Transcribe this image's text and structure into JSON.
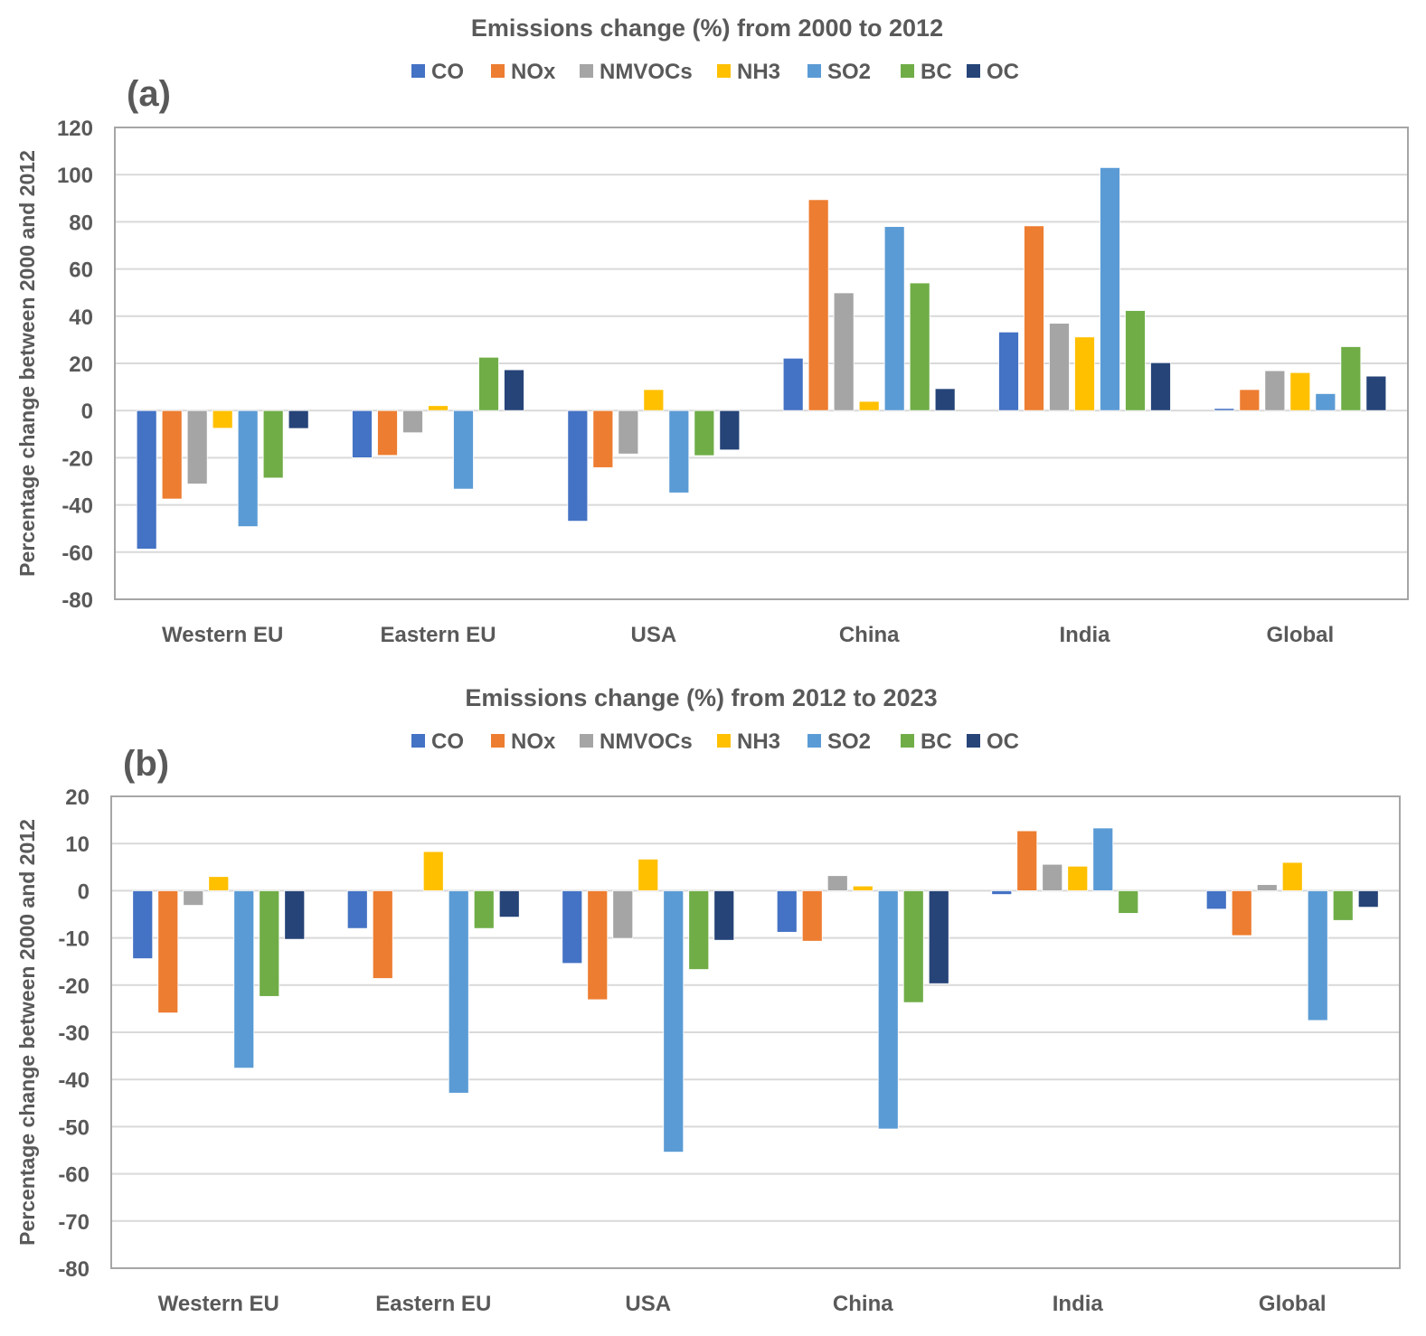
{
  "chart_data": [
    {
      "type": "bar",
      "panel_label": "(a)",
      "title": "Emissions change (%) from 2000 to 2012",
      "xlabel": "",
      "ylabel": "Percentage change between 2000 and 2012",
      "ylim": [
        -80,
        120
      ],
      "yticks": [
        120,
        100,
        80,
        60,
        40,
        20,
        0,
        -20,
        -40,
        -60,
        -80
      ],
      "grid": true,
      "legend_position": "top-center",
      "categories": [
        "Western EU",
        "Eastern EU",
        "USA",
        "China",
        "India",
        "Global"
      ],
      "series": [
        {
          "name": "CO",
          "color": "#4472c4",
          "values": [
            -58.7,
            -20.0,
            -46.9,
            22.2,
            33.3,
            0.9
          ]
        },
        {
          "name": "NOx",
          "color": "#ed7d31",
          "values": [
            -37.5,
            -19.0,
            -24.2,
            89.4,
            78.3,
            8.9
          ]
        },
        {
          "name": "NMVOCs",
          "color": "#a5a5a5",
          "values": [
            -31.1,
            -9.4,
            -18.4,
            49.9,
            37.0,
            16.9
          ]
        },
        {
          "name": "NH3",
          "color": "#ffc000",
          "values": [
            -7.5,
            2.1,
            8.9,
            3.9,
            31.2,
            16.1
          ]
        },
        {
          "name": "SO2",
          "color": "#5b9bd5",
          "values": [
            -49.2,
            -33.3,
            -34.9,
            78.0,
            103.0,
            7.2
          ]
        },
        {
          "name": "BC",
          "color": "#70ad47",
          "values": [
            -28.6,
            22.6,
            -19.1,
            54.1,
            42.4,
            27.1
          ]
        },
        {
          "name": "OC",
          "color": "#264478",
          "values": [
            -7.6,
            17.3,
            -16.7,
            9.3,
            20.3,
            14.6
          ]
        }
      ]
    },
    {
      "type": "bar",
      "panel_label": "(b)",
      "title": "Emissions change (%) from 2012 to 2023",
      "xlabel": "",
      "ylabel": "Percentage change between 2000 and 2012",
      "ylim": [
        -80,
        20
      ],
      "yticks": [
        20,
        10,
        0,
        -10,
        -20,
        -30,
        -40,
        -50,
        -60,
        -70,
        -80
      ],
      "grid": true,
      "legend_position": "top-center",
      "categories": [
        "Western EU",
        "Eastern EU",
        "USA",
        "China",
        "India",
        "Global"
      ],
      "series": [
        {
          "name": "CO",
          "color": "#4472c4",
          "values": [
            -14.4,
            -8.0,
            -15.4,
            -8.8,
            -0.8,
            -3.9
          ]
        },
        {
          "name": "NOx",
          "color": "#ed7d31",
          "values": [
            -25.9,
            -18.6,
            -23.1,
            -10.7,
            12.7,
            -9.5
          ]
        },
        {
          "name": "NMVOCs",
          "color": "#a5a5a5",
          "values": [
            -3.1,
            0,
            -10.1,
            3.2,
            5.6,
            1.3
          ]
        },
        {
          "name": "NH3",
          "color": "#ffc000",
          "values": [
            3.0,
            8.3,
            6.7,
            1.0,
            5.2,
            6.0
          ]
        },
        {
          "name": "SO2",
          "color": "#5b9bd5",
          "values": [
            -37.6,
            -42.9,
            -55.4,
            -50.5,
            13.3,
            -27.5
          ]
        },
        {
          "name": "BC",
          "color": "#70ad47",
          "values": [
            -22.4,
            -8.0,
            -16.7,
            -23.7,
            -4.8,
            -6.3
          ]
        },
        {
          "name": "OC",
          "color": "#264478",
          "values": [
            -10.3,
            -5.6,
            -10.5,
            -19.7,
            0,
            -3.5
          ]
        }
      ]
    }
  ]
}
